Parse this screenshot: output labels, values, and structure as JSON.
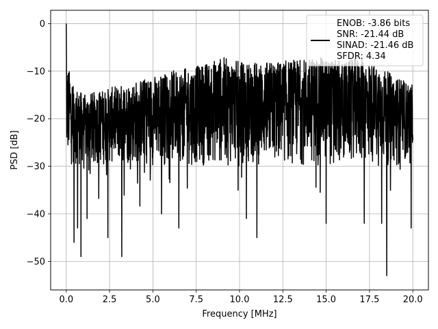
{
  "chart_data": {
    "type": "line",
    "xlabel": "Frequency [MHz]",
    "ylabel": "PSD [dB]",
    "xlim": [
      -0.9,
      20.9
    ],
    "ylim": [
      -56,
      2.8
    ],
    "xticks": [
      0.0,
      2.5,
      5.0,
      7.5,
      10.0,
      12.5,
      15.0,
      17.5,
      20.0
    ],
    "xtick_labels": [
      "0.0",
      "2.5",
      "5.0",
      "7.5",
      "10.0",
      "12.5",
      "15.0",
      "17.5",
      "20.0"
    ],
    "yticks": [
      0,
      -10,
      -20,
      -30,
      -40,
      -50
    ],
    "ytick_labels": [
      "0",
      "−10",
      "−20",
      "−30",
      "−40",
      "−50"
    ],
    "grid": true,
    "legend_position": "top-right",
    "legend_lines": [
      "ENOB: -3.86 bits",
      "SNR: -21.44 dB",
      "SINAD: -21.46 dB",
      "SFDR: 4.34"
    ],
    "series": [
      {
        "color": "#000000",
        "x_range": [
          0.0,
          20.0
        ],
        "num_points": 2048,
        "peak": {
          "x": 0.0,
          "y": 0.0
        },
        "upper_envelope": [
          {
            "x": 0.1,
            "y": -9
          },
          {
            "x": 0.5,
            "y": -13
          },
          {
            "x": 1.0,
            "y": -15
          },
          {
            "x": 2.0,
            "y": -14
          },
          {
            "x": 3.0,
            "y": -13
          },
          {
            "x": 4.0,
            "y": -12
          },
          {
            "x": 5.0,
            "y": -11
          },
          {
            "x": 6.0,
            "y": -10
          },
          {
            "x": 7.5,
            "y": -9
          },
          {
            "x": 9.0,
            "y": -7
          },
          {
            "x": 10.0,
            "y": -8
          },
          {
            "x": 12.0,
            "y": -8
          },
          {
            "x": 14.5,
            "y": -7
          },
          {
            "x": 16.0,
            "y": -8
          },
          {
            "x": 17.0,
            "y": -7
          },
          {
            "x": 18.0,
            "y": -9
          },
          {
            "x": 20.0,
            "y": -13
          }
        ],
        "typical_lower": -30,
        "notable_dips": [
          {
            "x": 0.45,
            "y": -46
          },
          {
            "x": 0.65,
            "y": -43
          },
          {
            "x": 0.85,
            "y": -49
          },
          {
            "x": 1.2,
            "y": -41
          },
          {
            "x": 2.4,
            "y": -45
          },
          {
            "x": 3.2,
            "y": -49
          },
          {
            "x": 5.5,
            "y": -40
          },
          {
            "x": 6.5,
            "y": -43
          },
          {
            "x": 10.4,
            "y": -41
          },
          {
            "x": 11.0,
            "y": -45
          },
          {
            "x": 15.0,
            "y": -42
          },
          {
            "x": 17.2,
            "y": -42
          },
          {
            "x": 18.2,
            "y": -42
          },
          {
            "x": 18.5,
            "y": -53
          },
          {
            "x": 19.9,
            "y": -43
          }
        ]
      }
    ]
  }
}
